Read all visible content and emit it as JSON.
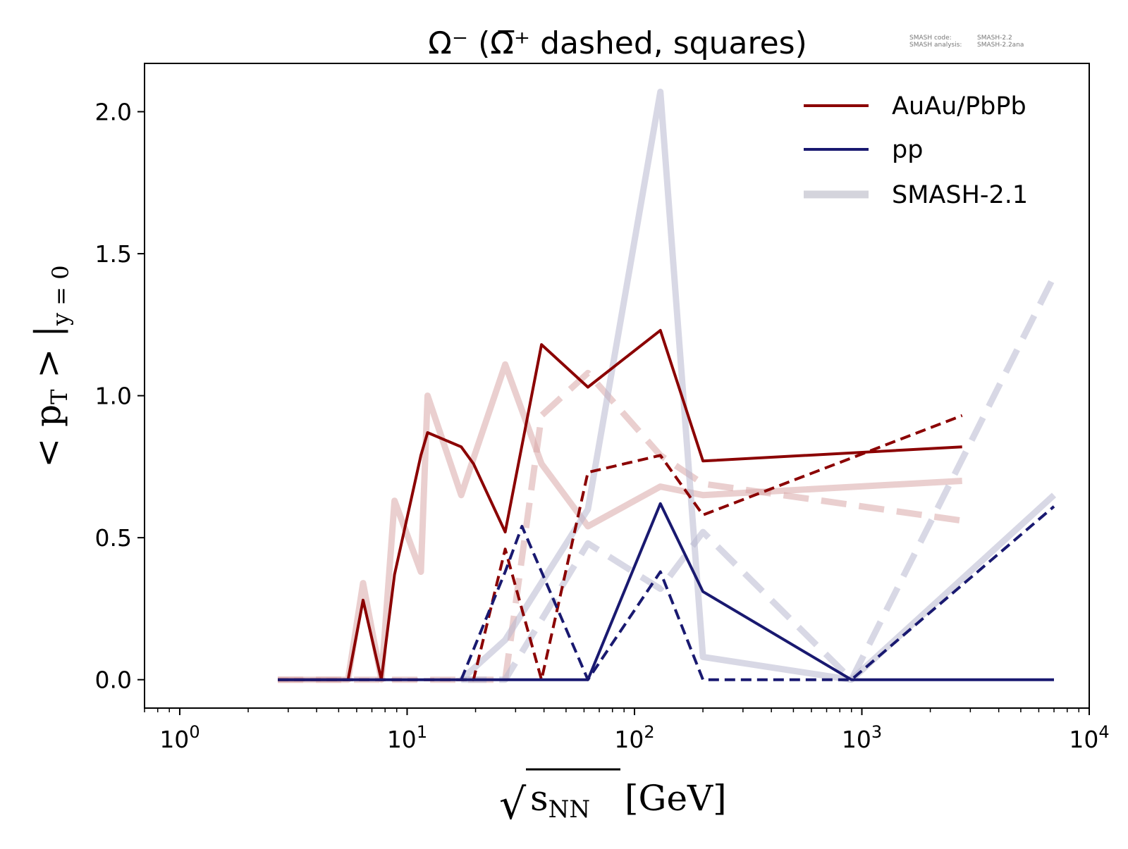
{
  "chart_data": {
    "type": "line",
    "title": "Ω⁻ (Ω̅⁺ dashed, squares)",
    "xlabel": {
      "sqrt_symbol": "√",
      "base": "s",
      "subscript": "NN",
      "unit": "[GeV]"
    },
    "ylabel": {
      "left": "< p",
      "subscript": "T",
      "right": " > |",
      "cond_subscript": "y = 0"
    },
    "x_scale": "log",
    "xlim": [
      0.7,
      10000
    ],
    "ylim": [
      -0.1,
      2.17
    ],
    "grid": false,
    "legend_position": "top-right",
    "x_ticks": [
      {
        "value": 1,
        "base": "10",
        "exp": "0"
      },
      {
        "value": 10,
        "base": "10",
        "exp": "1"
      },
      {
        "value": 100,
        "base": "10",
        "exp": "2"
      },
      {
        "value": 1000,
        "base": "10",
        "exp": "3"
      },
      {
        "value": 10000,
        "base": "10",
        "exp": "4"
      }
    ],
    "y_ticks": [
      {
        "value": 0.0,
        "label": "0.0"
      },
      {
        "value": 0.5,
        "label": "0.5"
      },
      {
        "value": 1.0,
        "label": "1.0"
      },
      {
        "value": 1.5,
        "label": "1.5"
      },
      {
        "value": 2.0,
        "label": "2.0"
      }
    ],
    "legend": [
      {
        "label": "AuAu/PbPb",
        "color": "#8b0000",
        "width": 4,
        "opacity": 1
      },
      {
        "label": "pp",
        "color": "#191970",
        "width": 4,
        "opacity": 1
      },
      {
        "label": "SMASH-2.1",
        "color": "#b0b0c0",
        "width": 11,
        "opacity": 0.55
      }
    ],
    "series": [
      {
        "group": "SMASH-2.1",
        "system": "AuAu/PbPb",
        "particle": "Ω⁻",
        "color": "#d9a8a8",
        "opacity": 0.55,
        "dashed": false,
        "width": 9,
        "x": [
          2.7,
          5.5,
          6.4,
          7.7,
          8.8,
          11.5,
          12.3,
          17.3,
          19.6,
          27,
          39,
          62.4,
          130,
          200,
          2760
        ],
        "y": [
          0.0,
          0.0,
          0.34,
          0.0,
          0.63,
          0.38,
          1.0,
          0.65,
          0.78,
          1.11,
          0.76,
          0.54,
          0.68,
          0.65,
          0.7
        ]
      },
      {
        "group": "SMASH-2.1",
        "system": "AuAu/PbPb",
        "particle": "Ω̅⁺",
        "color": "#d9a8a8",
        "opacity": 0.55,
        "dashed": true,
        "width": 9,
        "x": [
          2.7,
          5.5,
          7.7,
          11.5,
          19.6,
          27,
          39,
          62.4,
          130,
          200,
          2760
        ],
        "y": [
          0.0,
          0.0,
          0.0,
          0.0,
          0.0,
          0.0,
          0.93,
          1.08,
          0.79,
          0.69,
          0.56
        ]
      },
      {
        "group": "SMASH-2.1",
        "system": "pp",
        "particle": "Ω⁻",
        "color": "#b8b8d0",
        "opacity": 0.55,
        "dashed": false,
        "width": 9,
        "x": [
          17.3,
          27,
          62.4,
          130,
          200,
          900,
          7000
        ],
        "y": [
          0.0,
          0.14,
          0.6,
          2.07,
          0.08,
          0.0,
          0.65
        ]
      },
      {
        "group": "SMASH-2.1",
        "system": "pp",
        "particle": "Ω̅⁺",
        "color": "#b8b8d0",
        "opacity": 0.55,
        "dashed": true,
        "width": 9,
        "x": [
          17.3,
          27,
          62.4,
          130,
          200,
          900,
          7000
        ],
        "y": [
          0.0,
          0.0,
          0.48,
          0.32,
          0.52,
          0.0,
          1.42
        ]
      },
      {
        "group": "SMASH-2.2",
        "system": "AuAu/PbPb",
        "particle": "Ω⁻",
        "color": "#8b0000",
        "opacity": 1,
        "dashed": false,
        "width": 4,
        "x": [
          2.7,
          5.5,
          6.4,
          7.7,
          8.8,
          11.5,
          12.3,
          17.3,
          19.6,
          27,
          39,
          62.4,
          130,
          200,
          2760
        ],
        "y": [
          0.0,
          0.0,
          0.28,
          0.0,
          0.37,
          0.79,
          0.87,
          0.82,
          0.76,
          0.52,
          1.18,
          1.03,
          1.23,
          0.77,
          0.82
        ]
      },
      {
        "group": "SMASH-2.2",
        "system": "AuAu/PbPb",
        "particle": "Ω̅⁺",
        "color": "#8b0000",
        "opacity": 1,
        "dashed": true,
        "width": 4,
        "x": [
          2.7,
          5.5,
          7.7,
          11.5,
          19.6,
          27,
          39,
          62.4,
          130,
          200,
          2760
        ],
        "y": [
          0.0,
          0.0,
          0.0,
          0.0,
          0.0,
          0.46,
          0.0,
          0.73,
          0.79,
          0.58,
          0.93
        ]
      },
      {
        "group": "SMASH-2.2",
        "system": "pp",
        "particle": "Ω⁻",
        "color": "#191970",
        "opacity": 1,
        "dashed": false,
        "width": 4,
        "x": [
          2.7,
          17.3,
          27,
          62.4,
          130,
          200,
          900,
          7000
        ],
        "y": [
          0.0,
          0.0,
          0.0,
          0.0,
          0.62,
          0.31,
          0.0,
          0.0
        ]
      },
      {
        "group": "SMASH-2.2",
        "system": "pp",
        "particle": "Ω̅⁺",
        "color": "#191970",
        "opacity": 1,
        "dashed": true,
        "width": 4,
        "x": [
          17.3,
          27,
          32,
          62.4,
          130,
          200,
          900,
          7000
        ],
        "y": [
          0.0,
          0.38,
          0.54,
          0.0,
          0.38,
          0.0,
          0.0,
          0.61
        ]
      }
    ]
  },
  "meta_labels": {
    "code_label": "SMASH code:",
    "code_value": "SMASH-2.2",
    "analysis_label": "SMASH analysis:",
    "analysis_value": "SMASH-2.2ana"
  }
}
